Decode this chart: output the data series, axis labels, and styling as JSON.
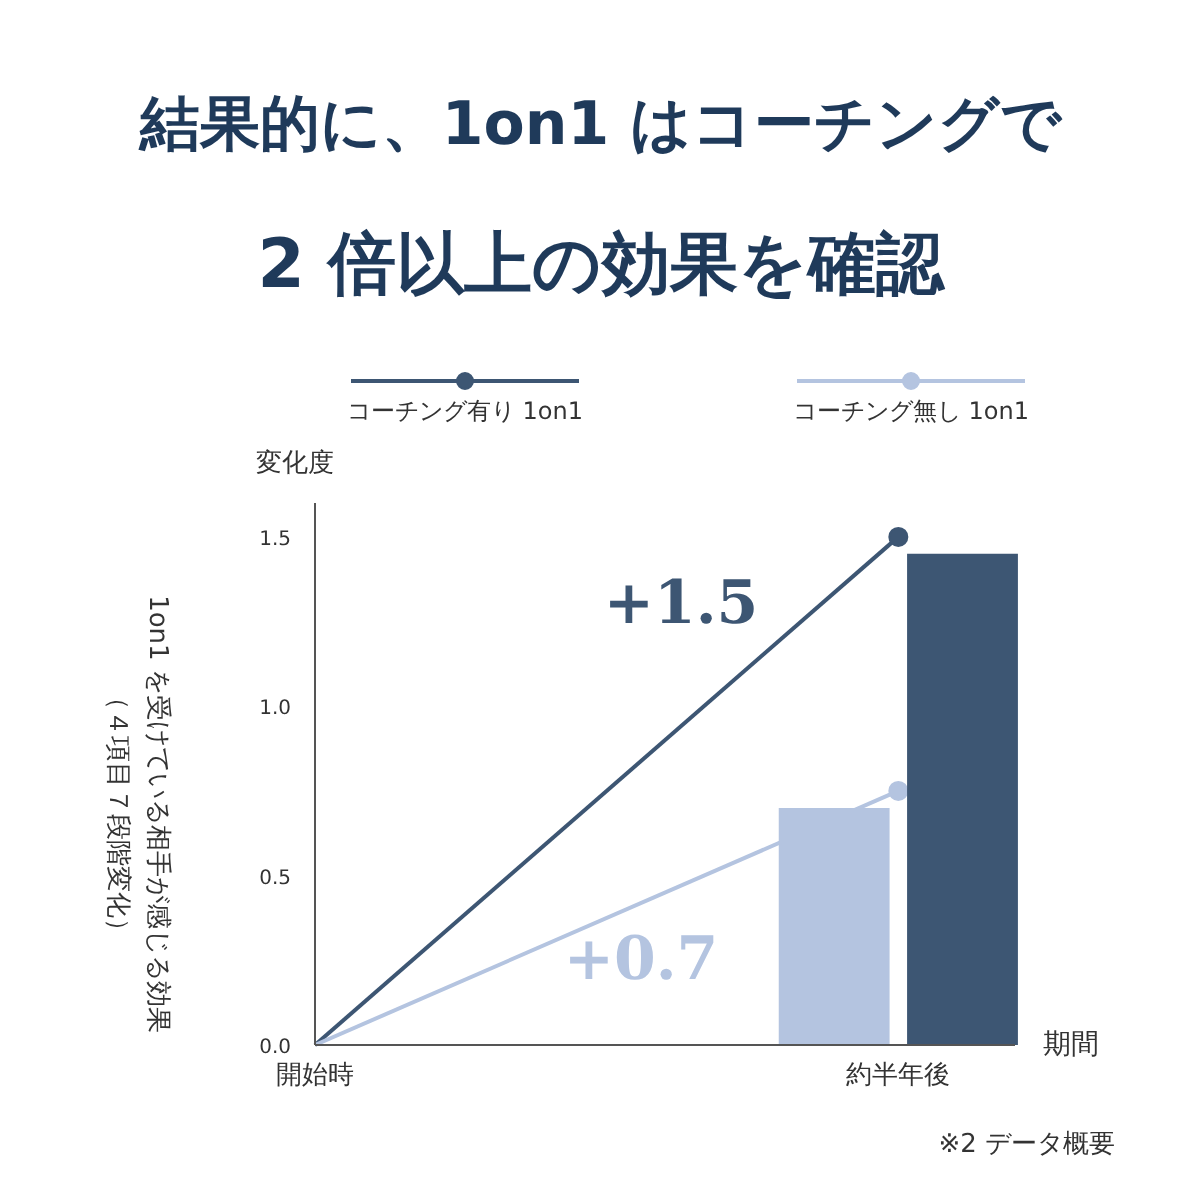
{
  "chart_data": {
    "type": "bar",
    "title": "結果的に、1on1 はコーチングで\n2 倍以上の効果を確認",
    "ylabel": "変化度",
    "xlabel": "期間",
    "categories": [
      "開始時",
      "約半年後"
    ],
    "series": [
      {
        "name": "コーチング有り 1on1",
        "type": "line",
        "color": "#3d5673",
        "values": [
          0,
          1.5
        ]
      },
      {
        "name": "コーチング無し 1on1",
        "type": "line",
        "color": "#b4c4e0",
        "values": [
          0,
          0.75
        ]
      },
      {
        "color": "#3d5673",
        "values": [
          null,
          1.45
        ]
      },
      {
        "color": "#b4c4e0",
        "values": [
          null,
          0.7
        ]
      }
    ],
    "ylim": [
      0,
      1.6
    ],
    "yticks": [
      {
        "value": 0,
        "label": "0.0"
      },
      {
        "value": 0.5,
        "label": "0.5"
      },
      {
        "value": 1.0,
        "label": "1.0"
      },
      {
        "value": 1.5,
        "label": "1.5"
      }
    ],
    "grid": false,
    "legend": "top",
    "marker": "circle",
    "annotations": [
      "+1.5",
      "+0.7",
      "1on1 を受けている相手が感じる効果",
      "（４項目７段階変化）",
      "※2 データ概要"
    ]
  }
}
